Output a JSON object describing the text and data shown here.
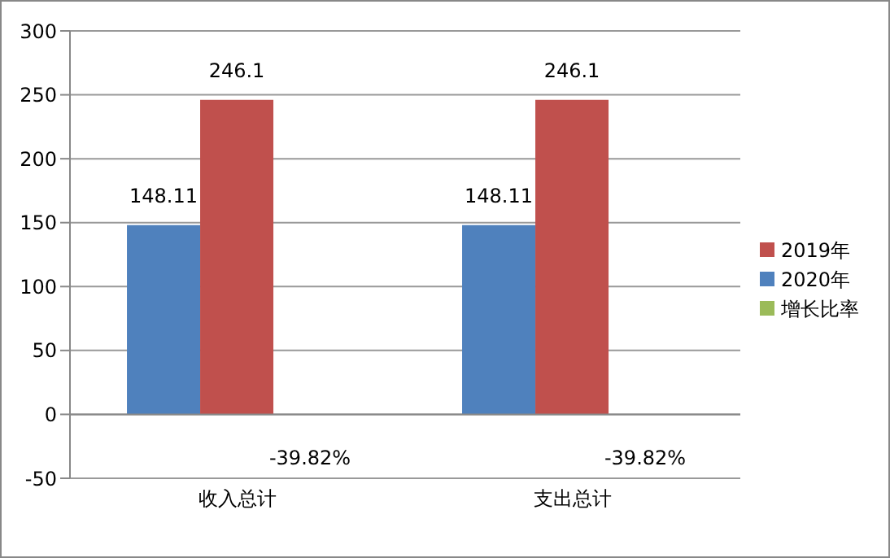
{
  "chart_data": {
    "type": "bar",
    "categories": [
      "收入总计",
      "支出总计"
    ],
    "series": [
      {
        "name": "2020年",
        "color": "#4f81bd",
        "values": [
          148.11,
          148.11
        ],
        "value_labels": [
          "148.11",
          "148.11"
        ]
      },
      {
        "name": "2019年",
        "color": "#c0504d",
        "values": [
          246.1,
          246.1
        ],
        "value_labels": [
          "246.1",
          "246.1"
        ]
      },
      {
        "name": "增长比率",
        "color": "#9bbb59",
        "values": [
          -0.3982,
          -0.3982
        ],
        "value_labels": [
          "-39.82%",
          "-39.82%"
        ]
      }
    ],
    "ylim": [
      -50,
      300
    ],
    "yticks": [
      -50,
      0,
      50,
      100,
      150,
      200,
      250,
      300
    ],
    "grid": "y",
    "legend": "right"
  }
}
